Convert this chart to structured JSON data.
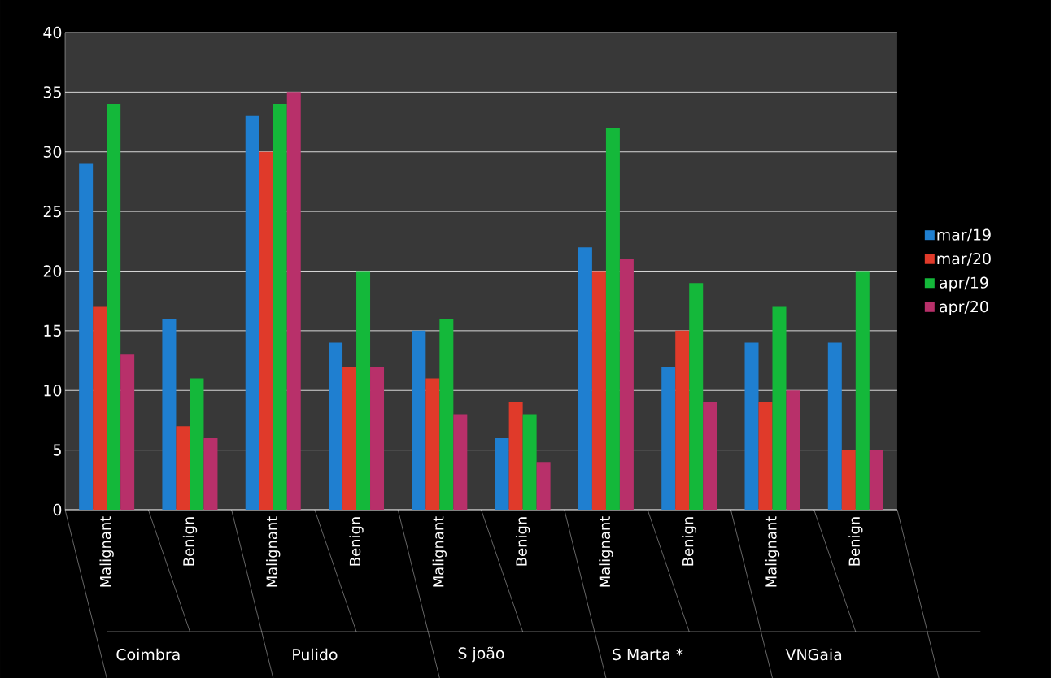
{
  "chart_data": {
    "type": "bar",
    "categories": [
      "Malignant",
      "Benign",
      "Malignant",
      "Benign",
      "Malignant",
      "Benign",
      "Malignant",
      "Benign",
      "Malignant",
      "Benign"
    ],
    "annotations": [
      "Coimbra",
      "Pulido",
      "S joão",
      "S Marta *",
      "VNGaia"
    ],
    "series": [
      {
        "name": "mar/19",
        "color": "#1f7fd0",
        "values": [
          29,
          16,
          33,
          14,
          15,
          6,
          22,
          12,
          14,
          14
        ]
      },
      {
        "name": "mar/20",
        "color": "#e03a2a",
        "values": [
          17,
          7,
          30,
          12,
          11,
          9,
          20,
          15,
          9,
          5
        ]
      },
      {
        "name": "apr/19",
        "color": "#14b83a",
        "values": [
          34,
          11,
          34,
          20,
          16,
          8,
          32,
          19,
          17,
          20
        ]
      },
      {
        "name": "apr/20",
        "color": "#b8306a",
        "values": [
          13,
          6,
          35,
          12,
          8,
          4,
          21,
          9,
          10,
          5
        ]
      }
    ],
    "ylim": [
      0,
      40
    ],
    "yticks": [
      0,
      5,
      10,
      15,
      20,
      25,
      30,
      35,
      40
    ],
    "grid": "y",
    "legend": "right"
  }
}
